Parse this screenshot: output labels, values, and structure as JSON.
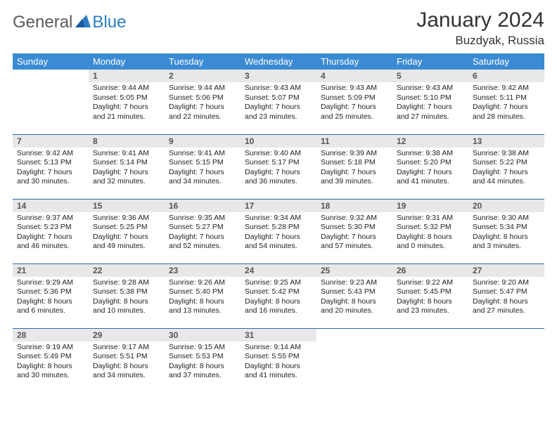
{
  "brand": {
    "part1": "General",
    "part2": "Blue"
  },
  "title": "January 2024",
  "location": "Buzdyak, Russia",
  "colors": {
    "header_bg": "#3b8bd4",
    "header_text": "#ffffff",
    "daynum_bg": "#e8e8e8",
    "rule": "#2f6aa8",
    "logo_gray": "#5a5a5a",
    "logo_blue": "#2b7cc4"
  },
  "day_headers": [
    "Sunday",
    "Monday",
    "Tuesday",
    "Wednesday",
    "Thursday",
    "Friday",
    "Saturday"
  ],
  "weeks": [
    [
      null,
      {
        "n": "1",
        "sr": "Sunrise: 9:44 AM",
        "ss": "Sunset: 5:05 PM",
        "d1": "Daylight: 7 hours",
        "d2": "and 21 minutes."
      },
      {
        "n": "2",
        "sr": "Sunrise: 9:44 AM",
        "ss": "Sunset: 5:06 PM",
        "d1": "Daylight: 7 hours",
        "d2": "and 22 minutes."
      },
      {
        "n": "3",
        "sr": "Sunrise: 9:43 AM",
        "ss": "Sunset: 5:07 PM",
        "d1": "Daylight: 7 hours",
        "d2": "and 23 minutes."
      },
      {
        "n": "4",
        "sr": "Sunrise: 9:43 AM",
        "ss": "Sunset: 5:09 PM",
        "d1": "Daylight: 7 hours",
        "d2": "and 25 minutes."
      },
      {
        "n": "5",
        "sr": "Sunrise: 9:43 AM",
        "ss": "Sunset: 5:10 PM",
        "d1": "Daylight: 7 hours",
        "d2": "and 27 minutes."
      },
      {
        "n": "6",
        "sr": "Sunrise: 9:42 AM",
        "ss": "Sunset: 5:11 PM",
        "d1": "Daylight: 7 hours",
        "d2": "and 28 minutes."
      }
    ],
    [
      {
        "n": "7",
        "sr": "Sunrise: 9:42 AM",
        "ss": "Sunset: 5:13 PM",
        "d1": "Daylight: 7 hours",
        "d2": "and 30 minutes."
      },
      {
        "n": "8",
        "sr": "Sunrise: 9:41 AM",
        "ss": "Sunset: 5:14 PM",
        "d1": "Daylight: 7 hours",
        "d2": "and 32 minutes."
      },
      {
        "n": "9",
        "sr": "Sunrise: 9:41 AM",
        "ss": "Sunset: 5:15 PM",
        "d1": "Daylight: 7 hours",
        "d2": "and 34 minutes."
      },
      {
        "n": "10",
        "sr": "Sunrise: 9:40 AM",
        "ss": "Sunset: 5:17 PM",
        "d1": "Daylight: 7 hours",
        "d2": "and 36 minutes."
      },
      {
        "n": "11",
        "sr": "Sunrise: 9:39 AM",
        "ss": "Sunset: 5:18 PM",
        "d1": "Daylight: 7 hours",
        "d2": "and 39 minutes."
      },
      {
        "n": "12",
        "sr": "Sunrise: 9:38 AM",
        "ss": "Sunset: 5:20 PM",
        "d1": "Daylight: 7 hours",
        "d2": "and 41 minutes."
      },
      {
        "n": "13",
        "sr": "Sunrise: 9:38 AM",
        "ss": "Sunset: 5:22 PM",
        "d1": "Daylight: 7 hours",
        "d2": "and 44 minutes."
      }
    ],
    [
      {
        "n": "14",
        "sr": "Sunrise: 9:37 AM",
        "ss": "Sunset: 5:23 PM",
        "d1": "Daylight: 7 hours",
        "d2": "and 46 minutes."
      },
      {
        "n": "15",
        "sr": "Sunrise: 9:36 AM",
        "ss": "Sunset: 5:25 PM",
        "d1": "Daylight: 7 hours",
        "d2": "and 49 minutes."
      },
      {
        "n": "16",
        "sr": "Sunrise: 9:35 AM",
        "ss": "Sunset: 5:27 PM",
        "d1": "Daylight: 7 hours",
        "d2": "and 52 minutes."
      },
      {
        "n": "17",
        "sr": "Sunrise: 9:34 AM",
        "ss": "Sunset: 5:28 PM",
        "d1": "Daylight: 7 hours",
        "d2": "and 54 minutes."
      },
      {
        "n": "18",
        "sr": "Sunrise: 9:32 AM",
        "ss": "Sunset: 5:30 PM",
        "d1": "Daylight: 7 hours",
        "d2": "and 57 minutes."
      },
      {
        "n": "19",
        "sr": "Sunrise: 9:31 AM",
        "ss": "Sunset: 5:32 PM",
        "d1": "Daylight: 8 hours",
        "d2": "and 0 minutes."
      },
      {
        "n": "20",
        "sr": "Sunrise: 9:30 AM",
        "ss": "Sunset: 5:34 PM",
        "d1": "Daylight: 8 hours",
        "d2": "and 3 minutes."
      }
    ],
    [
      {
        "n": "21",
        "sr": "Sunrise: 9:29 AM",
        "ss": "Sunset: 5:36 PM",
        "d1": "Daylight: 8 hours",
        "d2": "and 6 minutes."
      },
      {
        "n": "22",
        "sr": "Sunrise: 9:28 AM",
        "ss": "Sunset: 5:38 PM",
        "d1": "Daylight: 8 hours",
        "d2": "and 10 minutes."
      },
      {
        "n": "23",
        "sr": "Sunrise: 9:26 AM",
        "ss": "Sunset: 5:40 PM",
        "d1": "Daylight: 8 hours",
        "d2": "and 13 minutes."
      },
      {
        "n": "24",
        "sr": "Sunrise: 9:25 AM",
        "ss": "Sunset: 5:42 PM",
        "d1": "Daylight: 8 hours",
        "d2": "and 16 minutes."
      },
      {
        "n": "25",
        "sr": "Sunrise: 9:23 AM",
        "ss": "Sunset: 5:43 PM",
        "d1": "Daylight: 8 hours",
        "d2": "and 20 minutes."
      },
      {
        "n": "26",
        "sr": "Sunrise: 9:22 AM",
        "ss": "Sunset: 5:45 PM",
        "d1": "Daylight: 8 hours",
        "d2": "and 23 minutes."
      },
      {
        "n": "27",
        "sr": "Sunrise: 9:20 AM",
        "ss": "Sunset: 5:47 PM",
        "d1": "Daylight: 8 hours",
        "d2": "and 27 minutes."
      }
    ],
    [
      {
        "n": "28",
        "sr": "Sunrise: 9:19 AM",
        "ss": "Sunset: 5:49 PM",
        "d1": "Daylight: 8 hours",
        "d2": "and 30 minutes."
      },
      {
        "n": "29",
        "sr": "Sunrise: 9:17 AM",
        "ss": "Sunset: 5:51 PM",
        "d1": "Daylight: 8 hours",
        "d2": "and 34 minutes."
      },
      {
        "n": "30",
        "sr": "Sunrise: 9:15 AM",
        "ss": "Sunset: 5:53 PM",
        "d1": "Daylight: 8 hours",
        "d2": "and 37 minutes."
      },
      {
        "n": "31",
        "sr": "Sunrise: 9:14 AM",
        "ss": "Sunset: 5:55 PM",
        "d1": "Daylight: 8 hours",
        "d2": "and 41 minutes."
      },
      null,
      null,
      null
    ]
  ]
}
